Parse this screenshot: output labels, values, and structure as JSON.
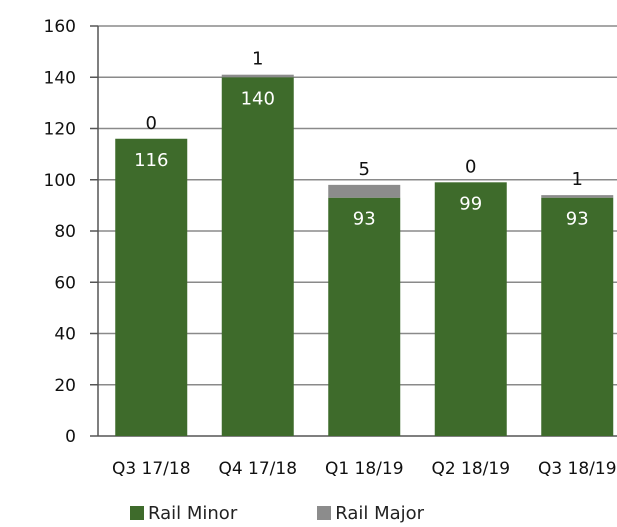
{
  "chart_data": {
    "type": "bar",
    "stacked": true,
    "categories": [
      "Q3 17/18",
      "Q4 17/18",
      "Q1 18/19",
      "Q2 18/19",
      "Q3 18/19"
    ],
    "series": [
      {
        "name": "Rail Minor",
        "color": "#3e6b2b",
        "values": [
          116,
          140,
          93,
          99,
          93
        ]
      },
      {
        "name": "Rail Major",
        "color": "#8c8c8c",
        "values": [
          0,
          1,
          5,
          0,
          1
        ]
      }
    ],
    "y_ticks": [
      0,
      20,
      40,
      60,
      80,
      100,
      120,
      140,
      160
    ],
    "ylim": [
      0,
      160
    ],
    "grid": true,
    "legend_position": "bottom"
  }
}
